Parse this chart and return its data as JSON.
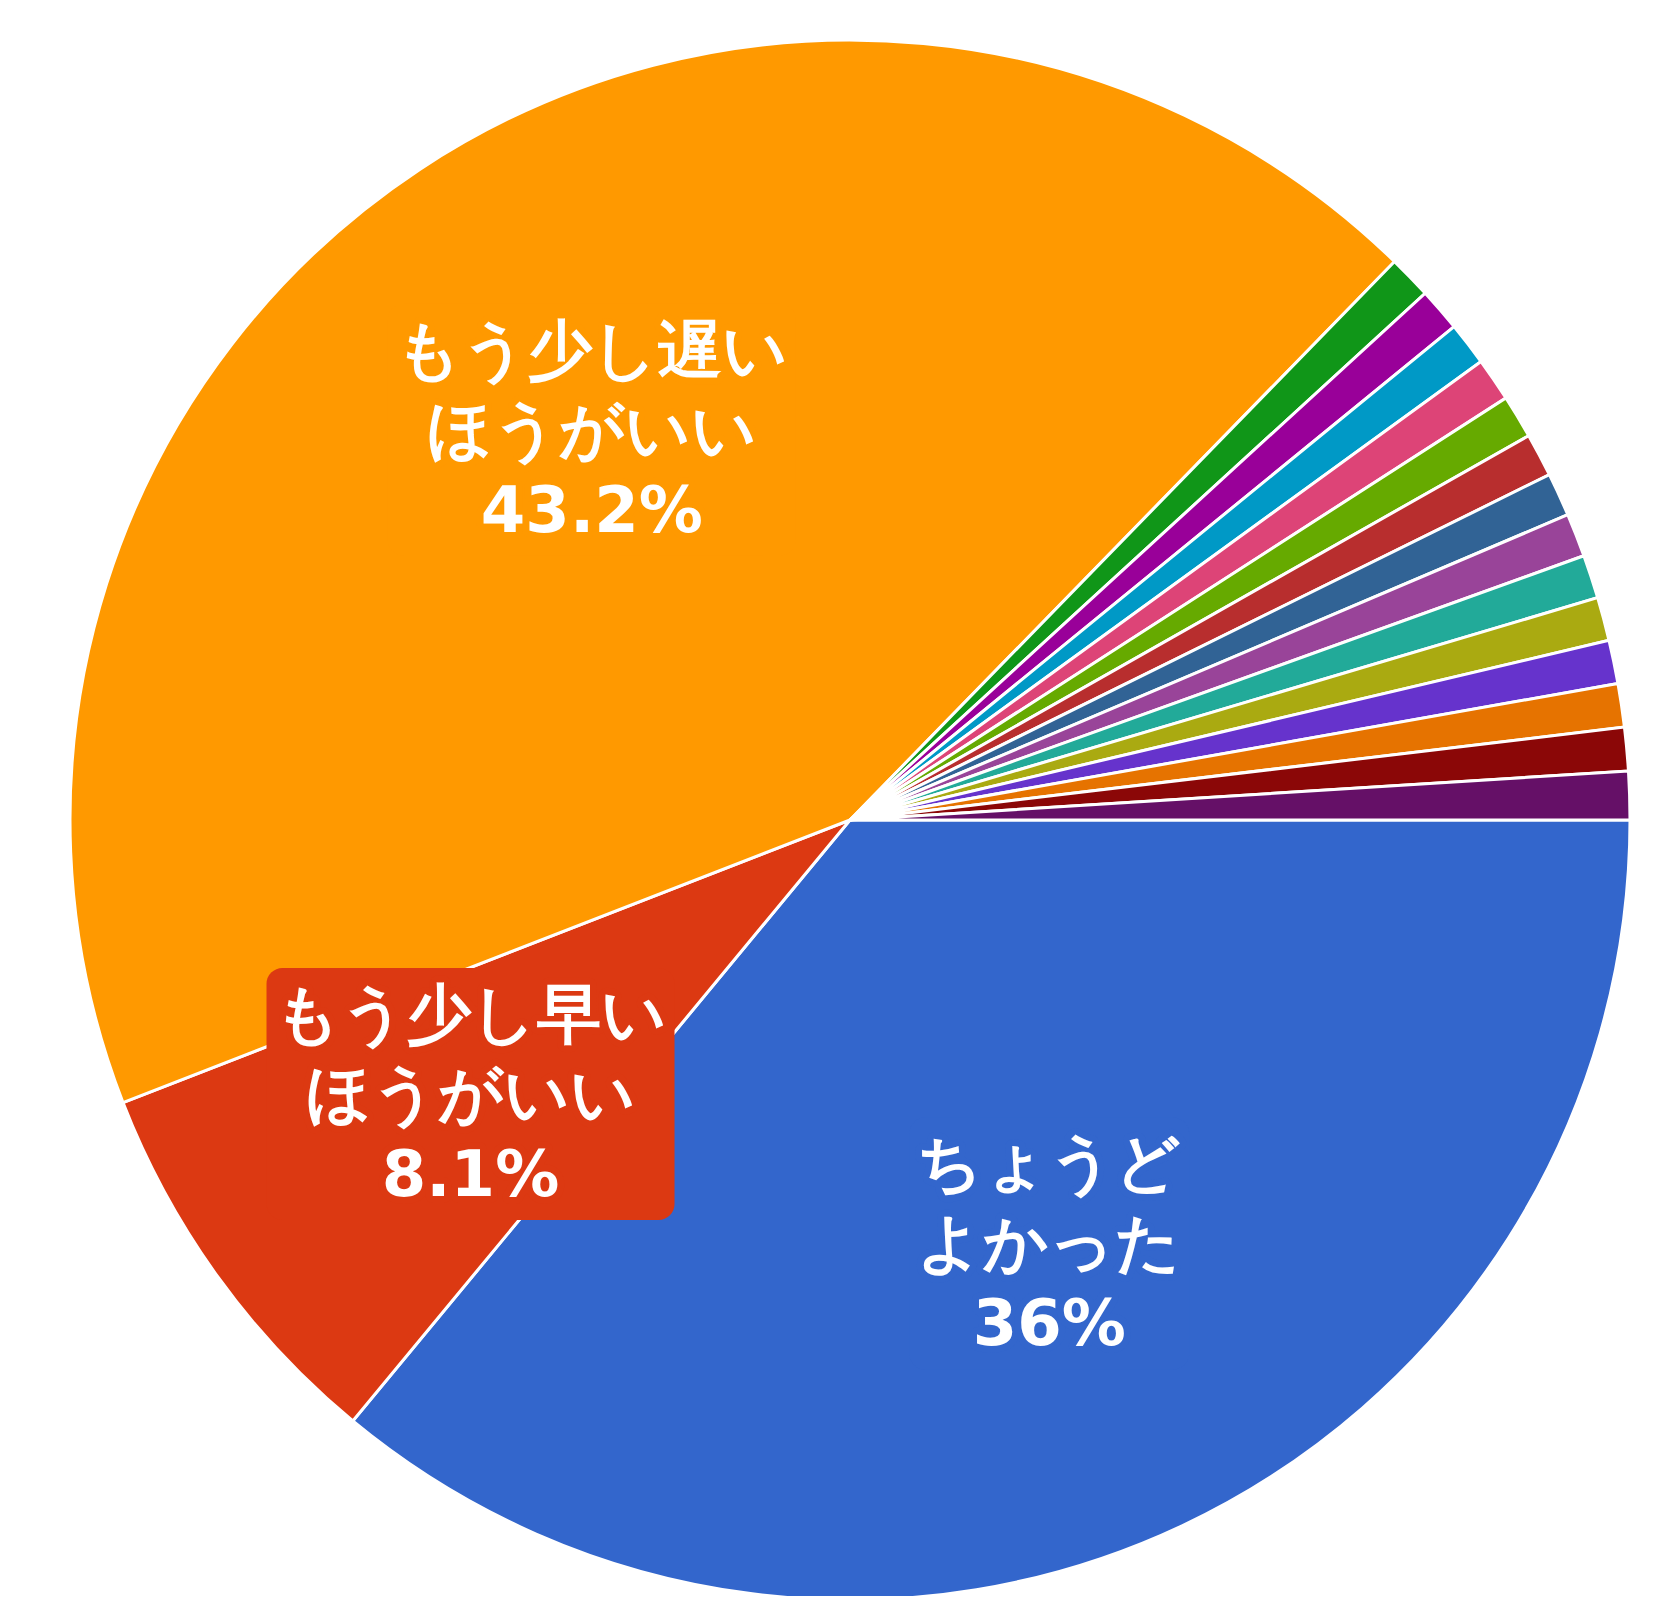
{
  "chart_data": {
    "type": "pie",
    "categories": [
      "ちょうどよかった",
      "もう少し早いほうがいい",
      "もう少し遅いほうがいい",
      null,
      null,
      null,
      null,
      null,
      null,
      null,
      null,
      null,
      null,
      null,
      null,
      null,
      null
    ],
    "values": [
      36,
      8.1,
      43.2,
      0.9,
      0.9,
      0.9,
      0.9,
      0.9,
      0.9,
      0.9,
      0.9,
      0.9,
      0.9,
      0.9,
      0.9,
      0.9,
      1.0
    ],
    "value_labels": [
      "36%",
      "8.1%",
      "43.2%",
      null,
      null,
      null,
      null,
      null,
      null,
      null,
      null,
      null,
      null,
      null,
      null,
      null,
      null
    ],
    "colors": [
      "#3366cc",
      "#dc3912",
      "#ff9900",
      "#109618",
      "#990099",
      "#0099c6",
      "#dd4477",
      "#66aa00",
      "#b82e2e",
      "#316395",
      "#994499",
      "#22aa99",
      "#aaaa11",
      "#6633cc",
      "#e67300",
      "#8b0707",
      "#651067"
    ]
  }
}
